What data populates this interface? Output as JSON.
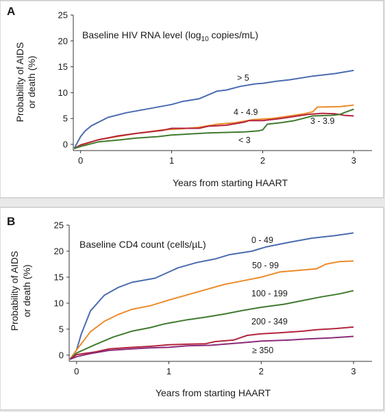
{
  "chart_data": [
    {
      "type": "line",
      "panel_label": "A",
      "title_prefix": "Baseline HIV RNA level (log",
      "title_sub": "10",
      "title_suffix": " copies/mL)",
      "xlabel": "Years from starting HAART",
      "ylabel_line1": "Probability of AIDS",
      "ylabel_line2": "or death (%)",
      "xlim": [
        -0.08,
        3.2
      ],
      "ylim": [
        -1.2,
        25
      ],
      "xticks": [
        "0",
        "1",
        "2",
        "3"
      ],
      "xtick_values": [
        0,
        1,
        2,
        3
      ],
      "yticks": [
        "0",
        "5",
        "10",
        "15",
        "20",
        "25"
      ],
      "ytick_values": [
        0,
        5,
        10,
        15,
        20,
        25
      ],
      "grid": false,
      "series": [
        {
          "name": "> 5",
          "color": "#4a6bb0",
          "points": [
            [
              -0.07,
              -0.8
            ],
            [
              0,
              1.5
            ],
            [
              0.05,
              2.6
            ],
            [
              0.12,
              3.6
            ],
            [
              0.3,
              5.2
            ],
            [
              0.5,
              6.1
            ],
            [
              0.75,
              6.9
            ],
            [
              1,
              7.7
            ],
            [
              1.12,
              8.3
            ],
            [
              1.3,
              8.8
            ],
            [
              1.5,
              10.3
            ],
            [
              1.6,
              10.5
            ],
            [
              1.75,
              11.2
            ],
            [
              1.92,
              11.7
            ],
            [
              2.0,
              11.8
            ],
            [
              2.15,
              12.2
            ],
            [
              2.3,
              12.5
            ],
            [
              2.55,
              13.2
            ],
            [
              2.8,
              13.7
            ],
            [
              2.9,
              14.0
            ],
            [
              3.0,
              14.3
            ]
          ]
        },
        {
          "name": "4 - 4.9",
          "color": "#ec8a2a",
          "points": [
            [
              -0.07,
              -0.8
            ],
            [
              0,
              -0.2
            ],
            [
              0.2,
              0.9
            ],
            [
              0.4,
              1.5
            ],
            [
              0.6,
              2.1
            ],
            [
              0.9,
              2.8
            ],
            [
              1.1,
              3.0
            ],
            [
              1.3,
              3.3
            ],
            [
              1.5,
              3.9
            ],
            [
              1.7,
              4.2
            ],
            [
              1.9,
              4.8
            ],
            [
              2.1,
              5.0
            ],
            [
              2.3,
              5.5
            ],
            [
              2.45,
              5.9
            ],
            [
              2.55,
              6.3
            ],
            [
              2.6,
              7.2
            ],
            [
              2.85,
              7.3
            ],
            [
              3.0,
              7.6
            ]
          ]
        },
        {
          "name": "3 - 3.9",
          "color": "#b3243c",
          "points": [
            [
              -0.07,
              -0.8
            ],
            [
              0,
              -0.1
            ],
            [
              0.2,
              0.9
            ],
            [
              0.4,
              1.6
            ],
            [
              0.6,
              2.1
            ],
            [
              0.9,
              2.7
            ],
            [
              1.0,
              3.1
            ],
            [
              1.3,
              3.1
            ],
            [
              1.4,
              3.5
            ],
            [
              1.6,
              3.7
            ],
            [
              1.8,
              4.3
            ],
            [
              1.85,
              4.6
            ],
            [
              2.0,
              4.6
            ],
            [
              2.2,
              5.0
            ],
            [
              2.35,
              5.4
            ],
            [
              2.5,
              5.8
            ],
            [
              2.65,
              6.0
            ],
            [
              2.8,
              5.9
            ],
            [
              2.9,
              5.6
            ],
            [
              3.0,
              5.5
            ]
          ]
        },
        {
          "name": "< 3",
          "color": "#3f7a2e",
          "points": [
            [
              -0.07,
              -0.8
            ],
            [
              0,
              -0.4
            ],
            [
              0.2,
              0.5
            ],
            [
              0.45,
              0.9
            ],
            [
              0.6,
              1.2
            ],
            [
              0.85,
              1.5
            ],
            [
              1.0,
              1.8
            ],
            [
              1.2,
              2.0
            ],
            [
              1.4,
              2.2
            ],
            [
              1.6,
              2.3
            ],
            [
              1.8,
              2.4
            ],
            [
              1.95,
              2.6
            ],
            [
              2.0,
              2.8
            ],
            [
              2.05,
              3.9
            ],
            [
              2.2,
              4.2
            ],
            [
              2.35,
              4.6
            ],
            [
              2.55,
              5.5
            ],
            [
              2.75,
              5.6
            ],
            [
              2.85,
              5.8
            ],
            [
              2.92,
              6.3
            ],
            [
              3.0,
              6.8
            ]
          ]
        }
      ]
    },
    {
      "type": "line",
      "panel_label": "B",
      "title": "Baseline CD4 count (cells/µL)",
      "xlabel": "Years from starting HAART",
      "ylabel_line1": "Probability of AIDS",
      "ylabel_line2": "or death (%)",
      "xlim": [
        -0.08,
        3.2
      ],
      "ylim": [
        -1.2,
        25
      ],
      "xticks": [
        "0",
        "1",
        "2",
        "3"
      ],
      "xtick_values": [
        0,
        1,
        2,
        3
      ],
      "yticks": [
        "0",
        "5",
        "10",
        "15",
        "20",
        "25"
      ],
      "ytick_values": [
        0,
        5,
        10,
        15,
        20,
        25
      ],
      "grid": false,
      "series": [
        {
          "name": "0 - 49",
          "color": "#4a6bb0",
          "points": [
            [
              -0.07,
              -0.8
            ],
            [
              0,
              1.0
            ],
            [
              0.05,
              4.0
            ],
            [
              0.15,
              8.5
            ],
            [
              0.3,
              11.5
            ],
            [
              0.45,
              13.0
            ],
            [
              0.6,
              14.0
            ],
            [
              0.85,
              14.8
            ],
            [
              1.1,
              16.8
            ],
            [
              1.3,
              17.8
            ],
            [
              1.5,
              18.5
            ],
            [
              1.65,
              19.3
            ],
            [
              1.9,
              20.0
            ],
            [
              2.05,
              20.8
            ],
            [
              2.3,
              21.7
            ],
            [
              2.55,
              22.5
            ],
            [
              2.8,
              23.0
            ],
            [
              3.0,
              23.5
            ]
          ]
        },
        {
          "name": "50 - 99",
          "color": "#ec8a2a",
          "points": [
            [
              -0.07,
              -0.8
            ],
            [
              0,
              1.0
            ],
            [
              0.15,
              4.5
            ],
            [
              0.3,
              6.5
            ],
            [
              0.45,
              7.8
            ],
            [
              0.6,
              8.8
            ],
            [
              0.8,
              9.5
            ],
            [
              1.0,
              10.6
            ],
            [
              1.2,
              11.6
            ],
            [
              1.4,
              12.6
            ],
            [
              1.6,
              13.6
            ],
            [
              1.8,
              14.3
            ],
            [
              2.0,
              15.0
            ],
            [
              2.2,
              16.0
            ],
            [
              2.4,
              16.3
            ],
            [
              2.6,
              16.6
            ],
            [
              2.7,
              17.5
            ],
            [
              2.85,
              18.0
            ],
            [
              3.0,
              18.1
            ]
          ]
        },
        {
          "name": "100 - 199",
          "color": "#3f7a2e",
          "points": [
            [
              -0.07,
              -0.8
            ],
            [
              0,
              0.4
            ],
            [
              0.2,
              2.0
            ],
            [
              0.4,
              3.5
            ],
            [
              0.6,
              4.6
            ],
            [
              0.8,
              5.3
            ],
            [
              0.95,
              6.0
            ],
            [
              1.2,
              6.8
            ],
            [
              1.4,
              7.3
            ],
            [
              1.6,
              7.9
            ],
            [
              1.8,
              8.6
            ],
            [
              2.0,
              9.2
            ],
            [
              2.25,
              9.8
            ],
            [
              2.45,
              10.5
            ],
            [
              2.65,
              11.2
            ],
            [
              2.85,
              11.8
            ],
            [
              3.0,
              12.4
            ]
          ]
        },
        {
          "name": "200 - 349",
          "color": "#b3243c",
          "points": [
            [
              -0.07,
              -0.8
            ],
            [
              0,
              0.1
            ],
            [
              0.2,
              0.6
            ],
            [
              0.35,
              1.2
            ],
            [
              0.6,
              1.5
            ],
            [
              0.8,
              1.7
            ],
            [
              1.0,
              2.0
            ],
            [
              1.2,
              2.1
            ],
            [
              1.4,
              2.2
            ],
            [
              1.5,
              2.6
            ],
            [
              1.7,
              2.9
            ],
            [
              1.85,
              3.8
            ],
            [
              2.0,
              4.1
            ],
            [
              2.2,
              4.3
            ],
            [
              2.45,
              4.6
            ],
            [
              2.6,
              4.9
            ],
            [
              2.8,
              5.1
            ],
            [
              3.0,
              5.4
            ]
          ]
        },
        {
          "name": "≥ 350",
          "color": "#8a2a78",
          "points": [
            [
              -0.07,
              -0.8
            ],
            [
              0,
              -0.3
            ],
            [
              0.15,
              0.3
            ],
            [
              0.35,
              0.9
            ],
            [
              0.6,
              1.2
            ],
            [
              0.8,
              1.4
            ],
            [
              1.0,
              1.5
            ],
            [
              1.2,
              1.8
            ],
            [
              1.45,
              1.9
            ],
            [
              1.6,
              2.1
            ],
            [
              1.8,
              2.4
            ],
            [
              2.0,
              2.7
            ],
            [
              2.3,
              2.9
            ],
            [
              2.5,
              3.1
            ],
            [
              2.75,
              3.3
            ],
            [
              3.0,
              3.6
            ]
          ]
        }
      ]
    }
  ]
}
